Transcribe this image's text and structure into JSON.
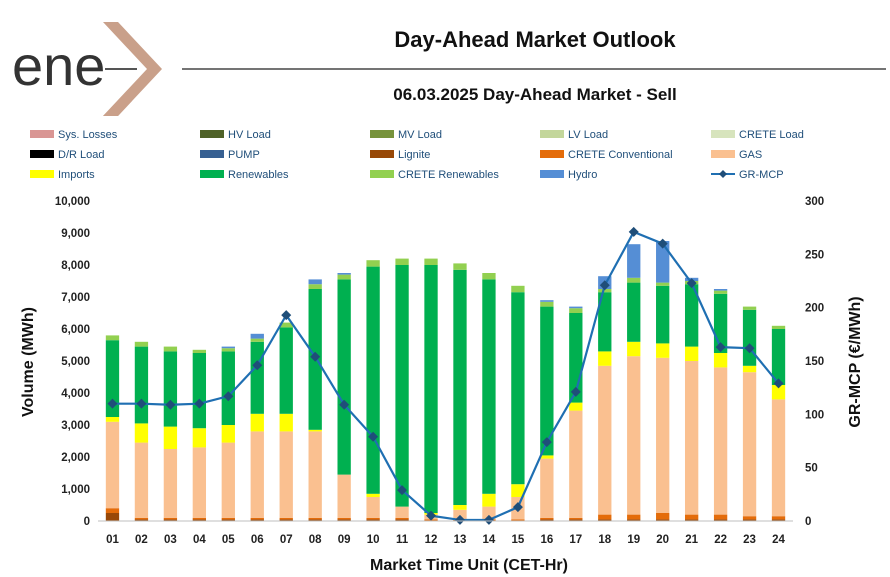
{
  "page": {
    "logo_text": "ene",
    "title": "Day-Ahead Market Outlook",
    "subtitle": "06.03.2025  Day-Ahead Market - Sell"
  },
  "chart_data": {
    "type": "bar",
    "stacked": true,
    "title": "06.03.2025  Day-Ahead Market - Sell",
    "xlabel": "Market Time Unit (CET-Hr)",
    "ylabel": "Volume (MWh)",
    "y2label": "GR-MCP (€/MWh)",
    "ylim": [
      0,
      10000
    ],
    "y2lim": [
      0,
      300
    ],
    "yticks": [
      0,
      1000,
      2000,
      3000,
      4000,
      5000,
      6000,
      7000,
      8000,
      9000,
      10000
    ],
    "ytick_labels": [
      "0",
      "1,000",
      "2,000",
      "3,000",
      "4,000",
      "5,000",
      "6,000",
      "7,000",
      "8,000",
      "9,000",
      "10,000"
    ],
    "y2ticks": [
      0,
      50,
      100,
      150,
      200,
      250,
      300
    ],
    "y2tick_labels": [
      "0",
      "50",
      "100",
      "150",
      "200",
      "250",
      "300"
    ],
    "categories": [
      "01",
      "02",
      "03",
      "04",
      "05",
      "06",
      "07",
      "08",
      "09",
      "10",
      "11",
      "12",
      "13",
      "14",
      "15",
      "16",
      "17",
      "18",
      "19",
      "20",
      "21",
      "22",
      "23",
      "24"
    ],
    "series": [
      {
        "name": "Sys. Losses",
        "color": "#d99694",
        "values": [
          0,
          0,
          0,
          0,
          0,
          0,
          0,
          0,
          0,
          0,
          0,
          0,
          0,
          0,
          0,
          0,
          0,
          0,
          0,
          0,
          0,
          0,
          0,
          0
        ]
      },
      {
        "name": "HV Load",
        "color": "#4f6228",
        "values": [
          0,
          0,
          0,
          0,
          0,
          0,
          0,
          0,
          0,
          0,
          0,
          0,
          0,
          0,
          0,
          0,
          0,
          0,
          0,
          0,
          0,
          0,
          0,
          0
        ]
      },
      {
        "name": "MV Load",
        "color": "#77933c",
        "values": [
          0,
          0,
          0,
          0,
          0,
          0,
          0,
          0,
          0,
          0,
          0,
          0,
          0,
          0,
          0,
          0,
          0,
          0,
          0,
          0,
          0,
          0,
          0,
          0
        ]
      },
      {
        "name": "LV Load",
        "color": "#c3d69b",
        "values": [
          0,
          0,
          0,
          0,
          0,
          0,
          0,
          0,
          0,
          0,
          0,
          0,
          0,
          0,
          0,
          0,
          0,
          0,
          0,
          0,
          0,
          0,
          0,
          0
        ]
      },
      {
        "name": "CRETE Load",
        "color": "#d7e4bd",
        "values": [
          0,
          0,
          0,
          0,
          0,
          0,
          0,
          0,
          0,
          0,
          0,
          0,
          0,
          0,
          0,
          0,
          0,
          0,
          0,
          0,
          0,
          0,
          0,
          0
        ]
      },
      {
        "name": "D/R Load",
        "color": "#000000",
        "values": [
          0,
          0,
          0,
          0,
          0,
          0,
          0,
          0,
          0,
          0,
          0,
          0,
          0,
          0,
          0,
          0,
          0,
          0,
          0,
          0,
          0,
          0,
          0,
          0
        ]
      },
      {
        "name": "PUMP",
        "color": "#376092",
        "values": [
          0,
          0,
          0,
          0,
          0,
          0,
          0,
          0,
          0,
          0,
          0,
          0,
          0,
          0,
          0,
          0,
          0,
          0,
          0,
          0,
          0,
          0,
          0,
          0
        ]
      },
      {
        "name": "Lignite",
        "color": "#984807",
        "values": [
          250,
          50,
          50,
          50,
          50,
          50,
          50,
          50,
          50,
          50,
          50,
          0,
          0,
          0,
          0,
          50,
          50,
          50,
          50,
          50,
          50,
          50,
          50,
          50
        ]
      },
      {
        "name": "CRETE Conventional",
        "color": "#e46c0a",
        "values": [
          150,
          50,
          50,
          50,
          50,
          50,
          50,
          50,
          50,
          50,
          50,
          50,
          50,
          50,
          50,
          50,
          50,
          150,
          150,
          200,
          150,
          150,
          100,
          100
        ]
      },
      {
        "name": "GAS",
        "color": "#fac090",
        "values": [
          2700,
          2350,
          2150,
          2200,
          2350,
          2700,
          2700,
          2700,
          1350,
          650,
          350,
          150,
          300,
          400,
          700,
          1850,
          3350,
          4650,
          4950,
          4850,
          4800,
          4600,
          4500,
          3650
        ]
      },
      {
        "name": "Imports",
        "color": "#ffff00",
        "values": [
          150,
          600,
          700,
          600,
          550,
          550,
          550,
          50,
          0,
          100,
          0,
          50,
          150,
          400,
          400,
          100,
          250,
          450,
          450,
          450,
          450,
          450,
          200,
          450
        ]
      },
      {
        "name": "Renewables",
        "color": "#00b050",
        "values": [
          2400,
          2400,
          2350,
          2350,
          2300,
          2250,
          2700,
          4400,
          6100,
          7100,
          7550,
          7750,
          7350,
          6700,
          6000,
          4650,
          2800,
          1850,
          1850,
          1800,
          1950,
          1850,
          1750,
          1750
        ]
      },
      {
        "name": "CRETE Renewables",
        "color": "#92d050",
        "values": [
          150,
          150,
          150,
          100,
          100,
          100,
          150,
          150,
          150,
          200,
          200,
          200,
          200,
          200,
          200,
          150,
          150,
          100,
          150,
          100,
          100,
          100,
          100,
          100
        ]
      },
      {
        "name": "Hydro",
        "color": "#558ed5",
        "values": [
          0,
          0,
          0,
          0,
          50,
          150,
          0,
          150,
          50,
          0,
          0,
          0,
          0,
          0,
          0,
          50,
          50,
          400,
          1050,
          1300,
          100,
          50,
          0,
          0
        ]
      }
    ],
    "line_series": {
      "name": "GR-MCP",
      "color": "#1f6fb2",
      "marker_color": "#1f4e79",
      "axis": "right",
      "values": [
        110,
        110,
        109,
        110,
        117,
        146,
        193,
        154,
        109,
        79,
        29,
        5,
        1,
        1,
        13,
        74,
        121,
        221,
        271,
        260,
        223,
        163,
        162,
        129
      ]
    },
    "legend": {
      "placement": "top",
      "entries": [
        "Sys. Losses",
        "HV Load",
        "MV Load",
        "LV Load",
        "CRETE Load",
        "D/R Load",
        "PUMP",
        "Lignite",
        "CRETE Conventional",
        "GAS",
        "Imports",
        "Renewables",
        "CRETE Renewables",
        "Hydro",
        "GR-MCP"
      ]
    }
  }
}
